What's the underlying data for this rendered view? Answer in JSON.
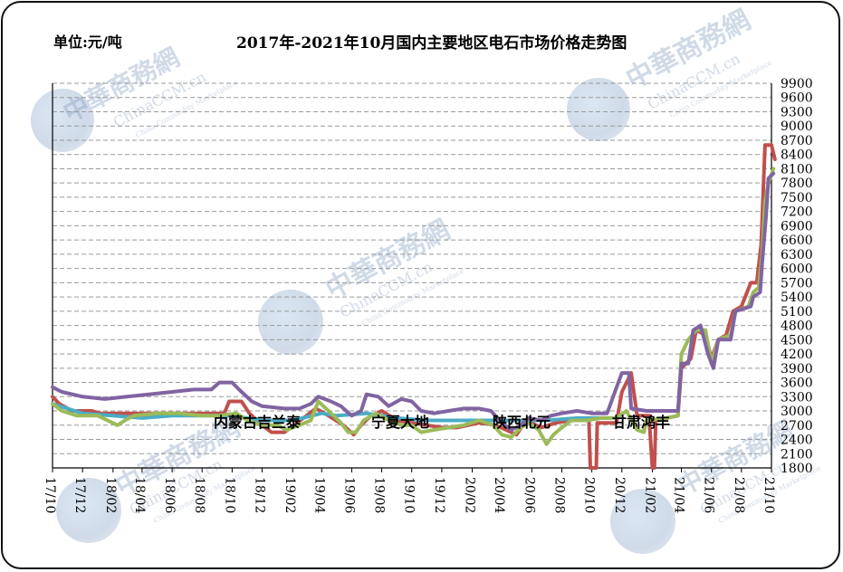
{
  "chart_data": {
    "type": "line",
    "title": "2017年-2021年10月国内主要地区电石市场价格走势图",
    "unit_label": "单位:元/吨",
    "ylim": [
      1800,
      9900
    ],
    "yticks": [
      1800,
      2100,
      2400,
      2700,
      3000,
      3300,
      3600,
      3900,
      4200,
      4500,
      4800,
      5100,
      5400,
      5700,
      6000,
      6300,
      6600,
      6900,
      7200,
      7500,
      7800,
      8100,
      8400,
      8700,
      9000,
      9300,
      9600,
      9900
    ],
    "xlim": [
      "2017-10",
      "2021-10"
    ],
    "xticks": [
      "17/10",
      "17/12",
      "18/02",
      "18/04",
      "18/06",
      "18/08",
      "18/10",
      "18/12",
      "19/02",
      "19/04",
      "19/06",
      "19/08",
      "19/10",
      "19/12",
      "20/02",
      "20/04",
      "20/06",
      "20/08",
      "20/10",
      "20/12",
      "21/02",
      "21/04",
      "21/06",
      "21/08",
      "21/10"
    ],
    "grid": true,
    "series": [
      {
        "name": "内蒙古吉兰泰",
        "color": "#c0504d",
        "points": [
          [
            "2017-10-01",
            3300
          ],
          [
            "2017-10-15",
            3150
          ],
          [
            "2017-11-10",
            3000
          ],
          [
            "2017-12-20",
            3000
          ],
          [
            "2018-01-05",
            2950
          ],
          [
            "2018-03-01",
            2950
          ],
          [
            "2018-05-01",
            2950
          ],
          [
            "2018-06-01",
            2950
          ],
          [
            "2018-07-01",
            2950
          ],
          [
            "2018-08-01",
            2950
          ],
          [
            "2018-09-15",
            2950
          ],
          [
            "2018-09-25",
            3200
          ],
          [
            "2018-10-20",
            3200
          ],
          [
            "2018-11-05",
            2950
          ],
          [
            "2018-12-01",
            2700
          ],
          [
            "2018-12-20",
            2550
          ],
          [
            "2019-01-15",
            2550
          ],
          [
            "2019-02-10",
            2750
          ],
          [
            "2019-03-01",
            2900
          ],
          [
            "2019-03-20",
            3050
          ],
          [
            "2019-04-15",
            2900
          ],
          [
            "2019-05-15",
            2700
          ],
          [
            "2019-06-05",
            2500
          ],
          [
            "2019-06-20",
            2700
          ],
          [
            "2019-07-10",
            2900
          ],
          [
            "2019-08-01",
            3000
          ],
          [
            "2019-09-01",
            2800
          ],
          [
            "2019-10-01",
            2750
          ],
          [
            "2019-11-01",
            2700
          ],
          [
            "2019-12-01",
            2650
          ],
          [
            "2020-01-01",
            2650
          ],
          [
            "2020-02-15",
            2750
          ],
          [
            "2020-03-20",
            2700
          ],
          [
            "2020-04-10",
            2600
          ],
          [
            "2020-05-01",
            2500
          ],
          [
            "2020-05-20",
            2800
          ],
          [
            "2020-06-20",
            2650
          ],
          [
            "2020-07-20",
            2750
          ],
          [
            "2020-08-20",
            2800
          ],
          [
            "2020-09-25",
            2800
          ],
          [
            "2020-09-28",
            1800
          ],
          [
            "2020-10-10",
            1800
          ],
          [
            "2020-10-12",
            2750
          ],
          [
            "2020-11-20",
            2750
          ],
          [
            "2020-12-01",
            3400
          ],
          [
            "2020-12-20",
            3800
          ],
          [
            "2021-01-01",
            2900
          ],
          [
            "2021-01-25",
            2900
          ],
          [
            "2021-02-01",
            1800
          ],
          [
            "2021-02-05",
            1800
          ],
          [
            "2021-02-08",
            2800
          ],
          [
            "2021-03-25",
            2900
          ],
          [
            "2021-04-01",
            3900
          ],
          [
            "2021-04-20",
            4100
          ],
          [
            "2021-05-01",
            4700
          ],
          [
            "2021-05-20",
            4600
          ],
          [
            "2021-06-01",
            4100
          ],
          [
            "2021-06-15",
            4500
          ],
          [
            "2021-07-01",
            4600
          ],
          [
            "2021-07-15",
            5100
          ],
          [
            "2021-08-01",
            5200
          ],
          [
            "2021-08-20",
            5700
          ],
          [
            "2021-09-01",
            5700
          ],
          [
            "2021-09-10",
            6500
          ],
          [
            "2021-09-18",
            8600
          ],
          [
            "2021-10-01",
            8600
          ],
          [
            "2021-10-08",
            8300
          ]
        ]
      },
      {
        "name": "宁夏大地",
        "color": "#4bacc6",
        "points": [
          [
            "2017-10-01",
            3150
          ],
          [
            "2017-12-01",
            2950
          ],
          [
            "2018-02-01",
            2900
          ],
          [
            "2018-04-01",
            2850
          ],
          [
            "2018-06-01",
            2900
          ],
          [
            "2018-08-01",
            2900
          ],
          [
            "2018-10-01",
            2900
          ],
          [
            "2018-12-01",
            2800
          ],
          [
            "2019-02-01",
            2800
          ],
          [
            "2019-04-01",
            2950
          ],
          [
            "2019-05-01",
            2900
          ],
          [
            "2019-07-01",
            2950
          ],
          [
            "2019-09-01",
            2850
          ],
          [
            "2019-11-01",
            2800
          ],
          [
            "2020-01-01",
            2800
          ],
          [
            "2020-03-01",
            2800
          ],
          [
            "2020-05-01",
            2800
          ],
          [
            "2020-07-01",
            2800
          ],
          [
            "2020-09-01",
            2850
          ],
          [
            "2020-11-01",
            2850
          ]
        ]
      },
      {
        "name": "陕西北元",
        "color": "#9bbb59",
        "points": [
          [
            "2017-10-01",
            3150
          ],
          [
            "2017-10-20",
            3000
          ],
          [
            "2017-11-20",
            2900
          ],
          [
            "2018-01-01",
            2900
          ],
          [
            "2018-02-10",
            2700
          ],
          [
            "2018-02-25",
            2800
          ],
          [
            "2018-03-15",
            2900
          ],
          [
            "2018-05-01",
            2950
          ],
          [
            "2018-06-15",
            2950
          ],
          [
            "2018-08-01",
            2900
          ],
          [
            "2018-09-01",
            2900
          ],
          [
            "2018-10-10",
            2950
          ],
          [
            "2018-11-01",
            2800
          ],
          [
            "2018-12-01",
            2700
          ],
          [
            "2019-01-01",
            2700
          ],
          [
            "2019-01-20",
            2600
          ],
          [
            "2019-02-15",
            2700
          ],
          [
            "2019-03-10",
            2800
          ],
          [
            "2019-03-25",
            3200
          ],
          [
            "2019-04-15",
            3000
          ],
          [
            "2019-05-10",
            2750
          ],
          [
            "2019-05-25",
            2550
          ],
          [
            "2019-06-10",
            2550
          ],
          [
            "2019-06-25",
            2800
          ],
          [
            "2019-07-20",
            2950
          ],
          [
            "2019-08-15",
            2800
          ],
          [
            "2019-09-10",
            2700
          ],
          [
            "2019-10-01",
            2700
          ],
          [
            "2019-10-20",
            2550
          ],
          [
            "2019-11-15",
            2600
          ],
          [
            "2019-12-15",
            2650
          ],
          [
            "2020-01-15",
            2700
          ],
          [
            "2020-02-15",
            2800
          ],
          [
            "2020-03-15",
            2700
          ],
          [
            "2020-04-01",
            2500
          ],
          [
            "2020-04-20",
            2450
          ],
          [
            "2020-05-10",
            2650
          ],
          [
            "2020-05-25",
            2750
          ],
          [
            "2020-06-15",
            2600
          ],
          [
            "2020-07-01",
            2300
          ],
          [
            "2020-07-15",
            2500
          ],
          [
            "2020-08-01",
            2650
          ],
          [
            "2020-08-20",
            2800
          ],
          [
            "2020-09-20",
            2800
          ],
          [
            "2020-10-20",
            2850
          ],
          [
            "2020-11-20",
            2850
          ],
          [
            "2020-12-10",
            3000
          ],
          [
            "2021-01-01",
            2600
          ],
          [
            "2021-01-15",
            2550
          ],
          [
            "2021-01-20",
            2800
          ],
          [
            "2021-03-01",
            2850
          ],
          [
            "2021-03-25",
            2900
          ],
          [
            "2021-04-01",
            4200
          ],
          [
            "2021-04-15",
            4500
          ],
          [
            "2021-05-01",
            4700
          ],
          [
            "2021-05-20",
            4700
          ],
          [
            "2021-06-01",
            4000
          ],
          [
            "2021-06-15",
            4500
          ],
          [
            "2021-07-10",
            4600
          ],
          [
            "2021-07-20",
            5100
          ],
          [
            "2021-08-15",
            5200
          ],
          [
            "2021-08-25",
            5500
          ],
          [
            "2021-09-05",
            5600
          ],
          [
            "2021-09-12",
            6300
          ],
          [
            "2021-09-18",
            7400
          ],
          [
            "2021-09-25",
            7800
          ],
          [
            "2021-10-05",
            8100
          ]
        ]
      },
      {
        "name": "甘肃鸿丰",
        "color": "#8064a2",
        "points": [
          [
            "2017-10-01",
            3500
          ],
          [
            "2017-10-20",
            3400
          ],
          [
            "2017-12-01",
            3300
          ],
          [
            "2018-01-15",
            3250
          ],
          [
            "2018-03-01",
            3300
          ],
          [
            "2018-04-15",
            3350
          ],
          [
            "2018-06-01",
            3400
          ],
          [
            "2018-07-15",
            3450
          ],
          [
            "2018-08-20",
            3450
          ],
          [
            "2018-09-05",
            3600
          ],
          [
            "2018-10-01",
            3600
          ],
          [
            "2018-10-15",
            3450
          ],
          [
            "2018-11-10",
            3200
          ],
          [
            "2018-12-01",
            3100
          ],
          [
            "2019-01-15",
            3050
          ],
          [
            "2019-02-15",
            3050
          ],
          [
            "2019-03-10",
            3150
          ],
          [
            "2019-03-25",
            3300
          ],
          [
            "2019-04-20",
            3200
          ],
          [
            "2019-05-10",
            3100
          ],
          [
            "2019-06-01",
            2900
          ],
          [
            "2019-06-20",
            3000
          ],
          [
            "2019-07-01",
            3350
          ],
          [
            "2019-07-25",
            3300
          ],
          [
            "2019-08-15",
            3100
          ],
          [
            "2019-09-10",
            3250
          ],
          [
            "2019-10-01",
            3200
          ],
          [
            "2019-10-20",
            3000
          ],
          [
            "2019-11-15",
            2950
          ],
          [
            "2019-12-15",
            3000
          ],
          [
            "2020-01-15",
            3050
          ],
          [
            "2020-02-15",
            3050
          ],
          [
            "2020-03-10",
            3000
          ],
          [
            "2020-04-01",
            2750
          ],
          [
            "2020-04-20",
            2600
          ],
          [
            "2020-05-10",
            2700
          ],
          [
            "2020-05-25",
            2850
          ],
          [
            "2020-06-20",
            2800
          ],
          [
            "2020-07-10",
            2900
          ],
          [
            "2020-08-01",
            2950
          ],
          [
            "2020-09-01",
            3000
          ],
          [
            "2020-10-01",
            2950
          ],
          [
            "2020-11-01",
            2950
          ],
          [
            "2020-11-15",
            3350
          ],
          [
            "2020-12-01",
            3800
          ],
          [
            "2020-12-15",
            3800
          ],
          [
            "2020-12-20",
            3050
          ],
          [
            "2021-01-20",
            3000
          ],
          [
            "2021-03-01",
            3000
          ],
          [
            "2021-03-25",
            3000
          ],
          [
            "2021-04-01",
            4000
          ],
          [
            "2021-04-15",
            4000
          ],
          [
            "2021-04-25",
            4700
          ],
          [
            "2021-05-10",
            4800
          ],
          [
            "2021-05-25",
            4200
          ],
          [
            "2021-06-05",
            3900
          ],
          [
            "2021-06-15",
            4500
          ],
          [
            "2021-07-10",
            4500
          ],
          [
            "2021-07-20",
            5100
          ],
          [
            "2021-08-20",
            5200
          ],
          [
            "2021-08-25",
            5400
          ],
          [
            "2021-09-08",
            5500
          ],
          [
            "2021-09-12",
            6100
          ],
          [
            "2021-09-20",
            7100
          ],
          [
            "2021-09-25",
            7900
          ],
          [
            "2021-10-05",
            8000
          ]
        ]
      }
    ]
  },
  "watermark": {
    "brand": "中華商務網",
    "brand_en": "ChinaCCM.cn",
    "tagline": "China Commodity Marketplace"
  }
}
